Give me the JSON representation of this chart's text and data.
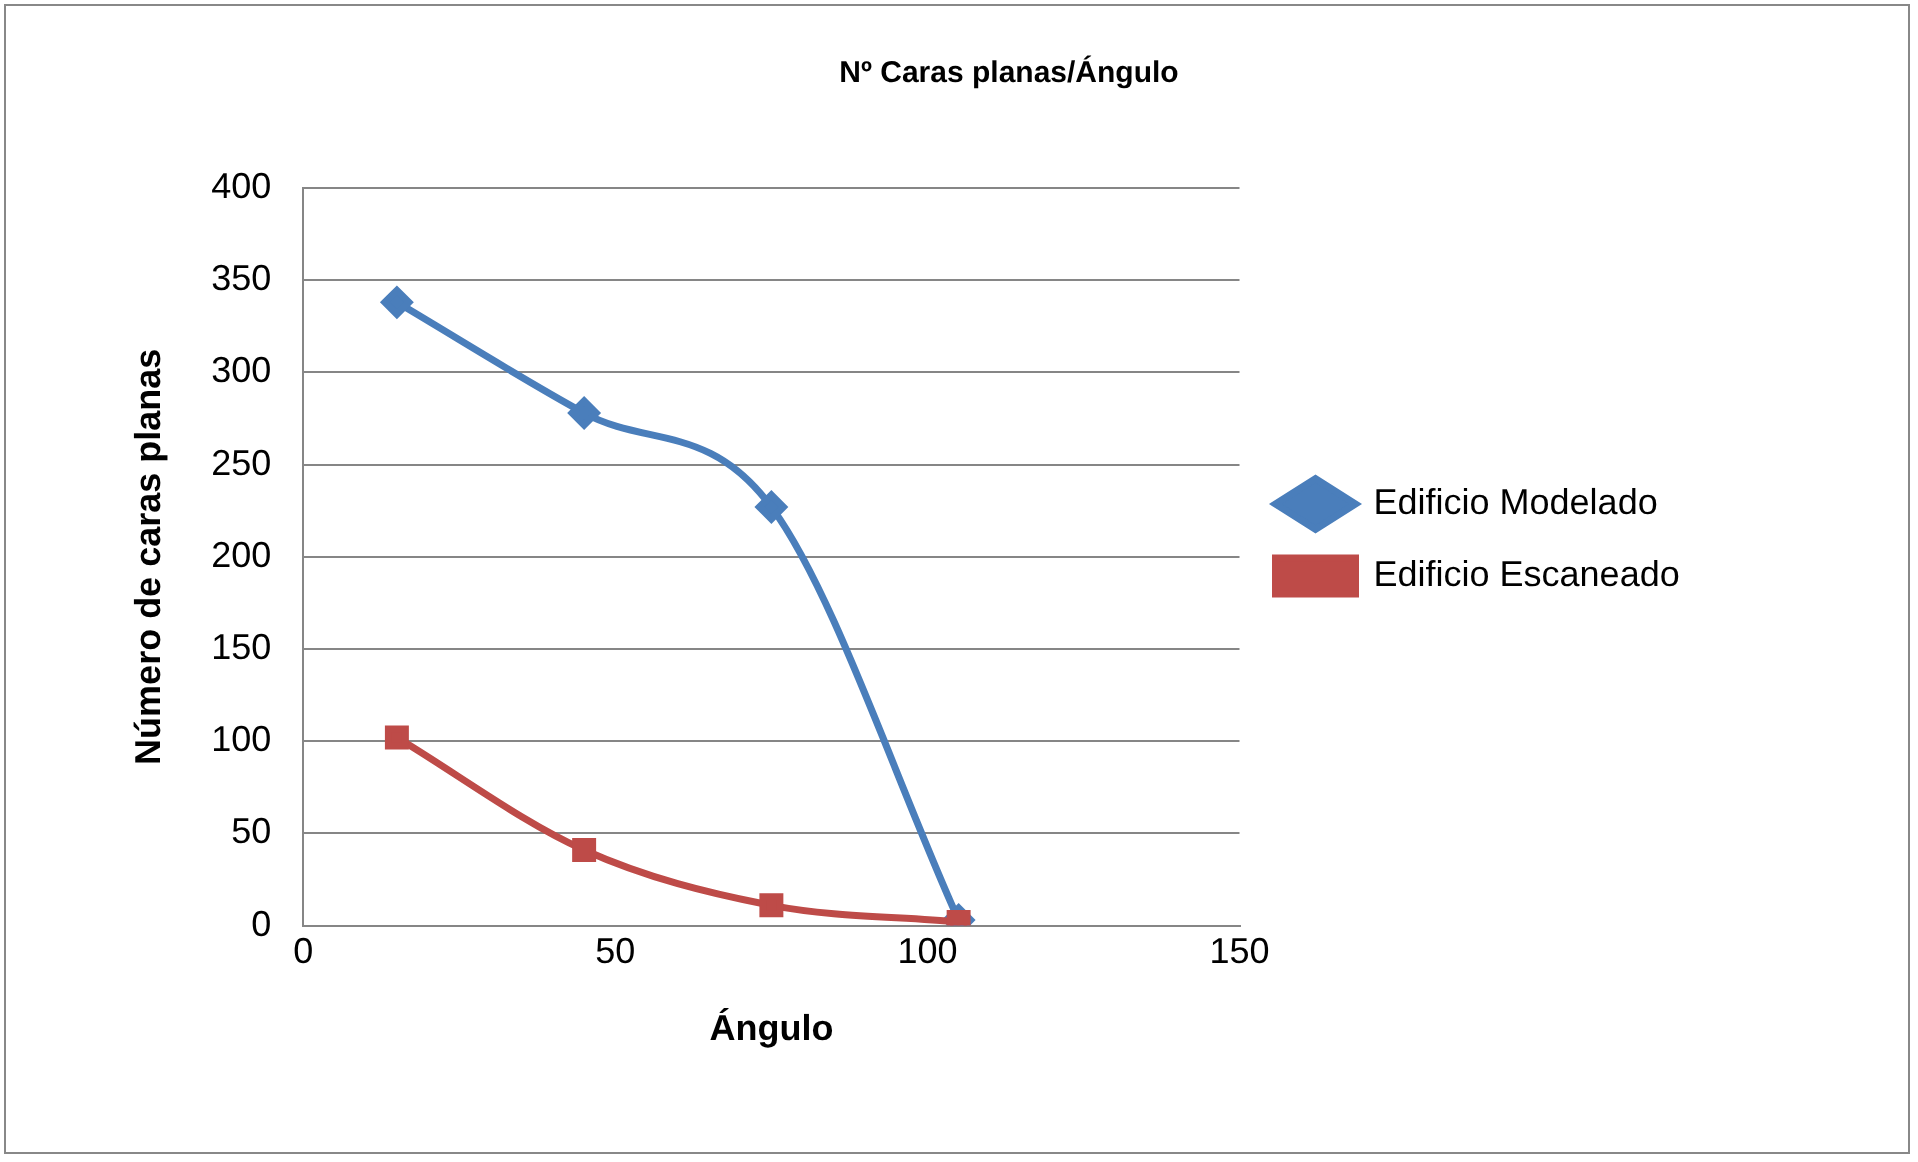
{
  "chart_data": {
    "type": "line",
    "title": "Nº Caras planas/Ángulo",
    "xlabel": "Ángulo",
    "ylabel": "Número de caras planas",
    "x": [
      15,
      45,
      75,
      105
    ],
    "series": [
      {
        "name": "Edificio Modelado",
        "color": "#4a7ebb",
        "values": [
          338,
          278,
          227,
          3
        ],
        "marker": "diamond"
      },
      {
        "name": "Edificio Escaneado",
        "color": "#be4b48",
        "values": [
          102,
          41,
          11,
          2
        ],
        "marker": "square"
      }
    ],
    "xlim": [
      0,
      150
    ],
    "xticks": [
      0,
      50,
      100,
      150
    ],
    "ylim": [
      0,
      400
    ],
    "yticks": [
      0,
      50,
      100,
      150,
      200,
      250,
      300,
      350,
      400
    ],
    "grid": "y",
    "legend": "right",
    "line_style": "solid"
  }
}
